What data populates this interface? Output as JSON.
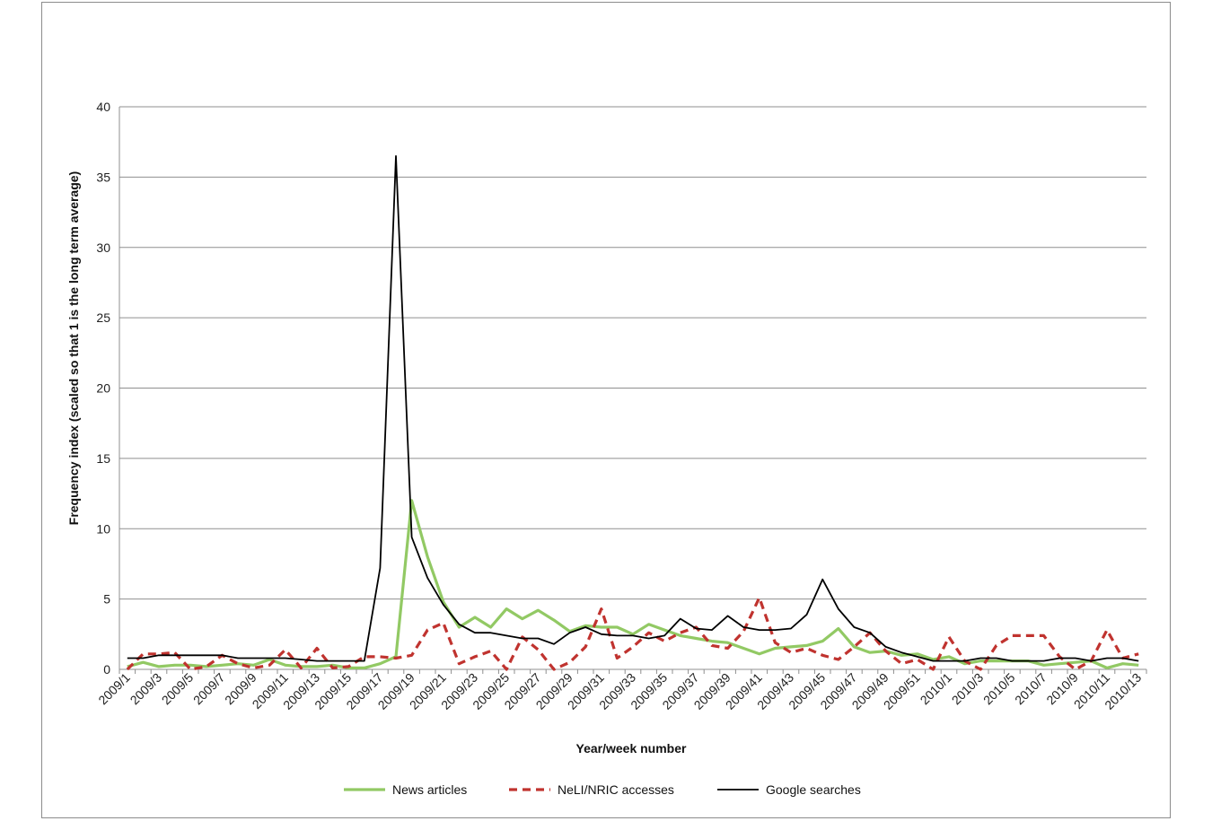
{
  "chart_data": {
    "type": "line",
    "title": "",
    "xlabel": "Year/week number",
    "ylabel": "Frequency index (scaled so that 1 is the long term average)",
    "ylim": [
      0,
      40
    ],
    "yticks": [
      0,
      5,
      10,
      15,
      20,
      25,
      30,
      35,
      40
    ],
    "grid": "horizontal",
    "legend": "bottom",
    "categories": [
      "2009/1",
      "2009/2",
      "2009/3",
      "2009/4",
      "2009/5",
      "2009/6",
      "2009/7",
      "2009/8",
      "2009/9",
      "2009/10",
      "2009/11",
      "2009/12",
      "2009/13",
      "2009/14",
      "2009/15",
      "2009/16",
      "2009/17",
      "2009/18",
      "2009/19",
      "2009/20",
      "2009/21",
      "2009/22",
      "2009/23",
      "2009/24",
      "2009/25",
      "2009/26",
      "2009/27",
      "2009/28",
      "2009/29",
      "2009/30",
      "2009/31",
      "2009/32",
      "2009/33",
      "2009/34",
      "2009/35",
      "2009/36",
      "2009/37",
      "2009/38",
      "2009/39",
      "2009/40",
      "2009/41",
      "2009/42",
      "2009/43",
      "2009/44",
      "2009/45",
      "2009/46",
      "2009/47",
      "2009/48",
      "2009/49",
      "2009/50",
      "2009/51",
      "2009/52",
      "2010/1",
      "2010/2",
      "2010/3",
      "2010/4",
      "2010/5",
      "2010/6",
      "2010/7",
      "2010/8",
      "2010/9",
      "2010/10",
      "2010/11",
      "2010/12",
      "2010/13"
    ],
    "series": [
      {
        "name": "News articles",
        "color": "#92c964",
        "style": "solid-thick",
        "values": [
          0.2,
          0.5,
          0.2,
          0.3,
          0.3,
          0.2,
          0.3,
          0.4,
          0.3,
          0.7,
          0.3,
          0.2,
          0.2,
          0.3,
          0.1,
          0.1,
          0.4,
          0.9,
          12.0,
          8.0,
          4.8,
          3.0,
          3.7,
          3.0,
          4.3,
          3.6,
          4.2,
          3.5,
          2.7,
          3.1,
          3.0,
          3.0,
          2.5,
          3.2,
          2.8,
          2.4,
          2.2,
          2.0,
          1.9,
          1.5,
          1.1,
          1.5,
          1.6,
          1.7,
          2.0,
          2.9,
          1.6,
          1.2,
          1.3,
          1.0,
          1.1,
          0.7,
          0.9,
          0.4,
          0.6,
          0.6,
          0.6,
          0.6,
          0.3,
          0.4,
          0.5,
          0.6,
          0.1,
          0.4,
          0.3
        ]
      },
      {
        "name": "NeLI/NRIC accesses",
        "color": "#c0332f",
        "style": "dashed",
        "values": [
          0.0,
          1.1,
          1.1,
          1.2,
          0.0,
          0.2,
          1.0,
          0.4,
          0.1,
          0.3,
          1.4,
          0.1,
          1.5,
          0.1,
          0.2,
          0.9,
          0.9,
          0.8,
          1.0,
          2.8,
          3.3,
          0.4,
          0.9,
          1.3,
          0.0,
          2.3,
          1.4,
          0.0,
          0.5,
          1.6,
          4.3,
          0.8,
          1.6,
          2.6,
          2.0,
          2.6,
          3.0,
          1.7,
          1.5,
          2.7,
          5.1,
          1.9,
          1.2,
          1.5,
          1.0,
          0.7,
          1.6,
          2.6,
          1.3,
          0.4,
          0.7,
          0.0,
          2.3,
          0.6,
          0.0,
          1.7,
          2.4,
          2.4,
          2.4,
          0.9,
          0.0,
          0.6,
          2.8,
          0.8,
          1.1
        ]
      },
      {
        "name": "Google searches",
        "color": "#000000",
        "style": "solid-thin",
        "values": [
          0.8,
          0.8,
          1.0,
          1.0,
          1.0,
          1.0,
          1.0,
          0.8,
          0.8,
          0.8,
          0.8,
          0.7,
          0.6,
          0.6,
          0.6,
          0.6,
          7.2,
          36.5,
          9.4,
          6.5,
          4.6,
          3.2,
          2.6,
          2.6,
          2.4,
          2.2,
          2.2,
          1.8,
          2.6,
          3.0,
          2.5,
          2.4,
          2.4,
          2.2,
          2.4,
          3.6,
          2.9,
          2.8,
          3.8,
          3.0,
          2.8,
          2.8,
          2.9,
          3.9,
          6.4,
          4.3,
          3.0,
          2.6,
          1.6,
          1.2,
          0.9,
          0.6,
          0.6,
          0.6,
          0.8,
          0.8,
          0.6,
          0.6,
          0.6,
          0.8,
          0.8,
          0.6,
          0.8,
          0.8,
          0.6
        ]
      }
    ]
  }
}
